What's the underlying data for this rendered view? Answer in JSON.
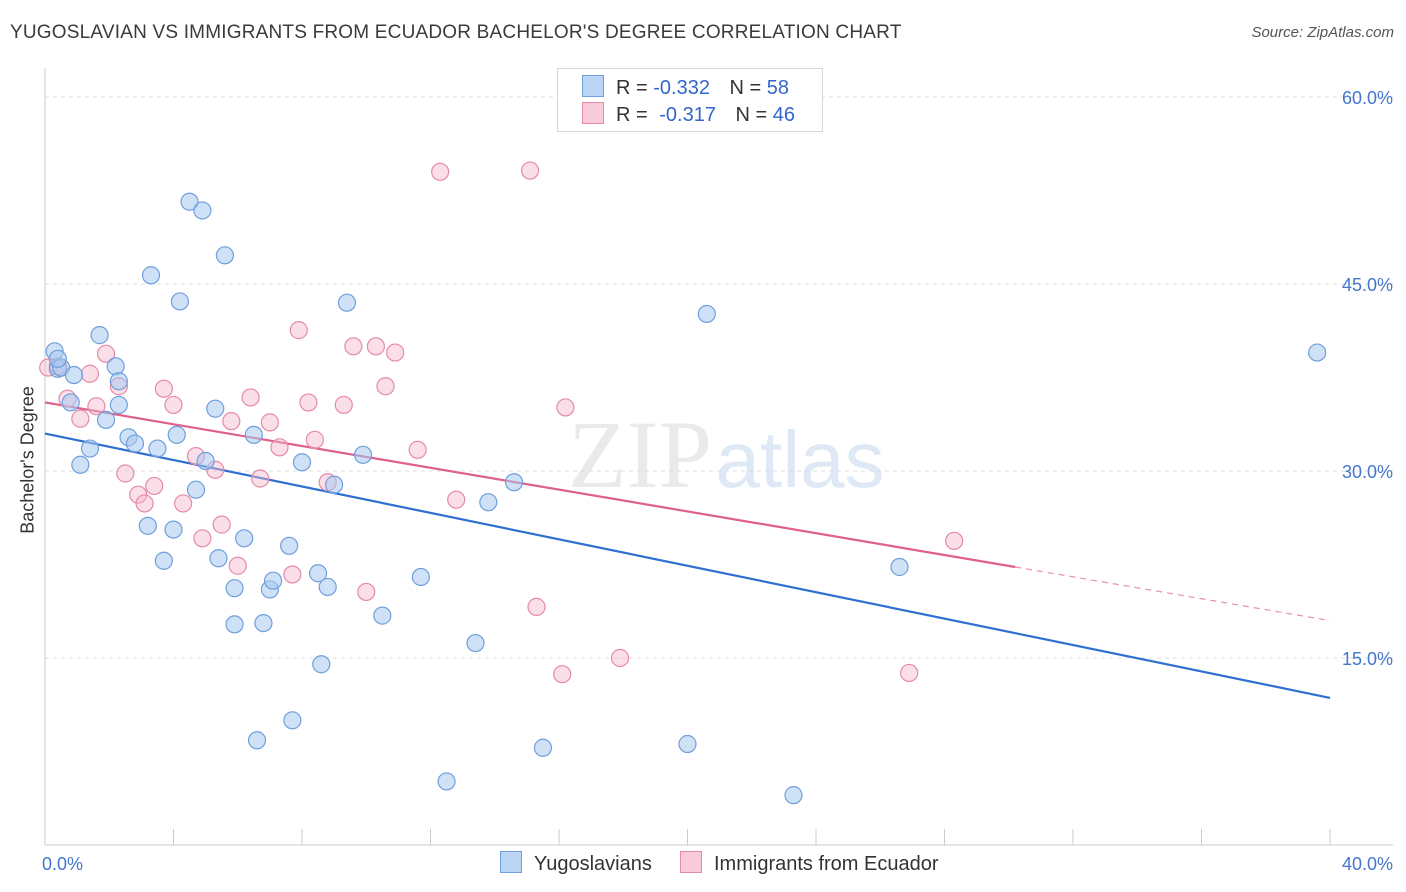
{
  "title": "YUGOSLAVIAN VS IMMIGRANTS FROM ECUADOR BACHELOR'S DEGREE CORRELATION CHART",
  "source": "Source: ZipAtlas.com",
  "watermark": {
    "zip": "ZIP",
    "atlas": "atlas"
  },
  "legend_top": {
    "rows": [
      {
        "r_label": "R =",
        "r_value": "-0.332",
        "n_label": "N =",
        "n_value": "58"
      },
      {
        "r_label": "R =",
        "r_value": "-0.317",
        "n_label": "N =",
        "n_value": "46"
      }
    ]
  },
  "colors": {
    "blue_fill": "#a8c8f0",
    "blue_stroke": "#6f9fdc",
    "blue_line": "#2f6fcf",
    "pink_fill": "#f7b8cb",
    "pink_stroke": "#e68aa6",
    "pink_line": "#e0608c",
    "tick_label": "#4477cc",
    "grid": "#dddddd"
  },
  "chart_data": {
    "type": "scatter",
    "title": "YUGOSLAVIAN VS IMMIGRANTS FROM ECUADOR BACHELOR'S DEGREE CORRELATION CHART",
    "xlabel": "",
    "ylabel": "Bachelor's Degree",
    "xlim": [
      0,
      40
    ],
    "ylim": [
      0,
      60
    ],
    "x_ticks": [
      0,
      40
    ],
    "x_tick_labels": [
      "0.0%",
      "40.0%"
    ],
    "y_ticks": [
      15,
      30,
      45,
      60
    ],
    "y_tick_labels": [
      "15.0%",
      "30.0%",
      "45.0%",
      "60.0%"
    ],
    "grid": true,
    "legend_position": "bottom",
    "series": [
      {
        "name": "Yugoslavians",
        "color": "#a8c8f0",
        "r": -0.332,
        "n": 58,
        "trend": {
          "x": [
            0,
            40
          ],
          "y": [
            33.0,
            11.8
          ]
        },
        "points": [
          [
            0.3,
            39.6
          ],
          [
            0.4,
            38.2
          ],
          [
            0.5,
            38.3
          ],
          [
            0.9,
            37.7
          ],
          [
            0.8,
            35.5
          ],
          [
            1.7,
            40.9
          ],
          [
            1.9,
            34.1
          ],
          [
            1.4,
            31.8
          ],
          [
            1.1,
            30.5
          ],
          [
            2.2,
            38.4
          ],
          [
            2.3,
            37.2
          ],
          [
            2.3,
            35.3
          ],
          [
            2.6,
            32.7
          ],
          [
            2.8,
            32.2
          ],
          [
            3.2,
            25.6
          ],
          [
            3.3,
            45.7
          ],
          [
            3.5,
            31.8
          ],
          [
            3.7,
            22.8
          ],
          [
            4.0,
            25.3
          ],
          [
            4.1,
            32.9
          ],
          [
            4.2,
            43.6
          ],
          [
            4.5,
            51.6
          ],
          [
            4.7,
            28.5
          ],
          [
            4.9,
            50.9
          ],
          [
            5.0,
            30.8
          ],
          [
            5.3,
            35.0
          ],
          [
            5.4,
            23.0
          ],
          [
            5.6,
            47.3
          ],
          [
            5.9,
            20.6
          ],
          [
            5.9,
            17.7
          ],
          [
            6.2,
            24.6
          ],
          [
            6.5,
            32.9
          ],
          [
            6.6,
            8.4
          ],
          [
            6.8,
            17.8
          ],
          [
            7.0,
            20.5
          ],
          [
            7.1,
            21.2
          ],
          [
            7.6,
            24.0
          ],
          [
            7.7,
            10.0
          ],
          [
            8.0,
            30.7
          ],
          [
            8.5,
            21.8
          ],
          [
            8.6,
            14.5
          ],
          [
            8.8,
            20.7
          ],
          [
            9.0,
            28.9
          ],
          [
            9.4,
            43.5
          ],
          [
            9.9,
            31.3
          ],
          [
            10.5,
            18.4
          ],
          [
            11.7,
            21.5
          ],
          [
            12.5,
            5.1
          ],
          [
            13.4,
            16.2
          ],
          [
            13.8,
            27.5
          ],
          [
            14.6,
            29.1
          ],
          [
            15.5,
            7.8
          ],
          [
            20.0,
            8.1
          ],
          [
            20.6,
            42.6
          ],
          [
            23.3,
            4.0
          ],
          [
            26.6,
            22.3
          ],
          [
            39.6,
            39.5
          ],
          [
            0.4,
            39.0
          ]
        ]
      },
      {
        "name": "Immigrants from Ecuador",
        "color": "#f7b8cb",
        "r": -0.317,
        "n": 46,
        "trend": {
          "x": [
            0,
            30.2
          ],
          "y": [
            35.5,
            22.3
          ]
        },
        "trend_dashed": {
          "x": [
            30.2,
            40
          ],
          "y": [
            22.3,
            18.0
          ]
        },
        "points": [
          [
            0.1,
            38.3
          ],
          [
            0.4,
            38.4
          ],
          [
            0.7,
            35.8
          ],
          [
            1.1,
            34.2
          ],
          [
            1.4,
            37.8
          ],
          [
            1.6,
            35.2
          ],
          [
            1.9,
            39.4
          ],
          [
            2.3,
            36.8
          ],
          [
            2.5,
            29.8
          ],
          [
            2.9,
            28.1
          ],
          [
            3.1,
            27.4
          ],
          [
            3.4,
            28.8
          ],
          [
            3.7,
            36.6
          ],
          [
            4.0,
            35.3
          ],
          [
            4.3,
            27.4
          ],
          [
            4.7,
            31.2
          ],
          [
            4.9,
            24.6
          ],
          [
            5.3,
            30.1
          ],
          [
            5.5,
            25.7
          ],
          [
            5.8,
            34.0
          ],
          [
            6.0,
            22.4
          ],
          [
            6.4,
            35.9
          ],
          [
            6.7,
            29.4
          ],
          [
            7.0,
            33.9
          ],
          [
            7.3,
            31.9
          ],
          [
            7.7,
            21.7
          ],
          [
            7.9,
            41.3
          ],
          [
            8.2,
            35.5
          ],
          [
            8.4,
            32.5
          ],
          [
            8.8,
            29.1
          ],
          [
            9.3,
            35.3
          ],
          [
            9.6,
            40.0
          ],
          [
            10.0,
            20.3
          ],
          [
            10.3,
            40.0
          ],
          [
            10.6,
            36.8
          ],
          [
            10.9,
            39.5
          ],
          [
            11.6,
            31.7
          ],
          [
            12.3,
            54.0
          ],
          [
            12.8,
            27.7
          ],
          [
            15.1,
            54.1
          ],
          [
            15.3,
            19.1
          ],
          [
            16.1,
            13.7
          ],
          [
            16.2,
            35.1
          ],
          [
            17.9,
            15.0
          ],
          [
            26.9,
            13.8
          ],
          [
            28.3,
            24.4
          ]
        ]
      }
    ]
  },
  "bottom_legend": {
    "items": [
      {
        "label": "Yugoslavians"
      },
      {
        "label": "Immigrants from Ecuador"
      }
    ]
  }
}
